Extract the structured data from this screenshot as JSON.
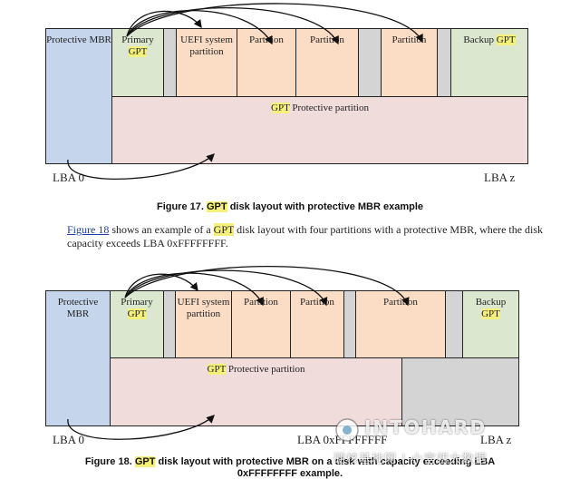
{
  "figure17": {
    "blocks": {
      "protective_mbr": "Protective MBR",
      "primary_gpt_line1": "Primary",
      "primary_gpt_line2": "GPT",
      "uefi": "UEFI system partition",
      "partition1": "Partition",
      "partition2": "Partition",
      "partition3": "Partition",
      "backup_prefix": "Backup",
      "backup_gpt": "GPT",
      "protective_partition_hl": "GPT",
      "protective_partition_rest": "Protective partition"
    },
    "lba_start": "LBA 0",
    "lba_end": "LBA z",
    "caption_prefix": "Figure 17.",
    "caption_hl": "GPT",
    "caption_rest": "disk layout with protective MBR example"
  },
  "paragraph": {
    "link": "Figure 18",
    "text1": "shows an example of a",
    "hl": "GPT",
    "text2": "disk layout with four partitions with a protective MBR, where the disk capacity exceeds LBA 0xFFFFFFFF."
  },
  "figure18": {
    "blocks": {
      "protective_mbr": "Protective MBR",
      "primary_gpt_line1": "Primary",
      "primary_gpt_line2": "GPT",
      "uefi": "UEFI system partition",
      "partition1": "Partition",
      "partition2": "Partition",
      "partition3": "Partition",
      "backup_line1": "Backup",
      "backup_line2": "GPT",
      "protective_partition_hl": "GPT",
      "protective_partition_rest": "Protective partition"
    },
    "lba_start": "LBA 0",
    "lba_mid": "LBA 0xFFFFFFFF",
    "lba_end": "LBA z",
    "caption_prefix": "Figure 18.",
    "caption_hl": "GPT",
    "caption_rest": "disk layout with protective MBR on a disk with capacity exceeding LBA 0xFFFFFFFF example."
  },
  "watermark": {
    "title": "INTOHARD",
    "subtitle": "硬核基地网 | 小宫初大数据"
  },
  "colors": {
    "mbr": "#c5d6ec",
    "gpt": "#dbe8cf",
    "partition": "#fbdcc5",
    "protective": "#f1dcdc",
    "gap": "#d4d4d4",
    "highlight": "#f5f07a"
  }
}
